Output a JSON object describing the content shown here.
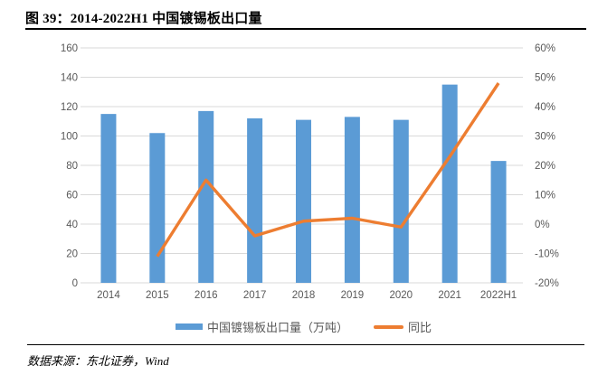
{
  "page": {
    "title": "图 39：2014-2022H1 中国镀锡板出口量",
    "source": "数据来源：东北证券，Wind"
  },
  "chart_data": {
    "type": "combo",
    "title": "2014-2022H1 中国镀锡板出口量",
    "categories": [
      "2014",
      "2015",
      "2016",
      "2017",
      "2018",
      "2019",
      "2020",
      "2021",
      "2022H1"
    ],
    "series": [
      {
        "name": "中国镀锡板出口量（万吨）",
        "type": "bar",
        "axis": "left",
        "color": "#5B9BD5",
        "values": [
          115,
          102,
          117,
          112,
          111,
          113,
          111,
          135,
          83
        ]
      },
      {
        "name": "同比",
        "type": "line",
        "axis": "right",
        "color": "#ED7D31",
        "values": [
          null,
          -11,
          15,
          -4,
          1,
          2,
          -1,
          23,
          48
        ]
      }
    ],
    "left_axis": {
      "min": 0,
      "max": 160,
      "step": 20,
      "ticks": [
        "0",
        "20",
        "40",
        "60",
        "80",
        "100",
        "120",
        "140",
        "160"
      ]
    },
    "right_axis": {
      "min": -20,
      "max": 60,
      "step": 10,
      "unit": "%",
      "ticks": [
        "-20%",
        "-10%",
        "0%",
        "10%",
        "20%",
        "30%",
        "40%",
        "50%",
        "60%"
      ]
    },
    "grid": true,
    "legend_position": "bottom",
    "colors": {
      "grid": "#D9D9D9",
      "tick_text": "#595959",
      "x_text": "#595959"
    }
  }
}
